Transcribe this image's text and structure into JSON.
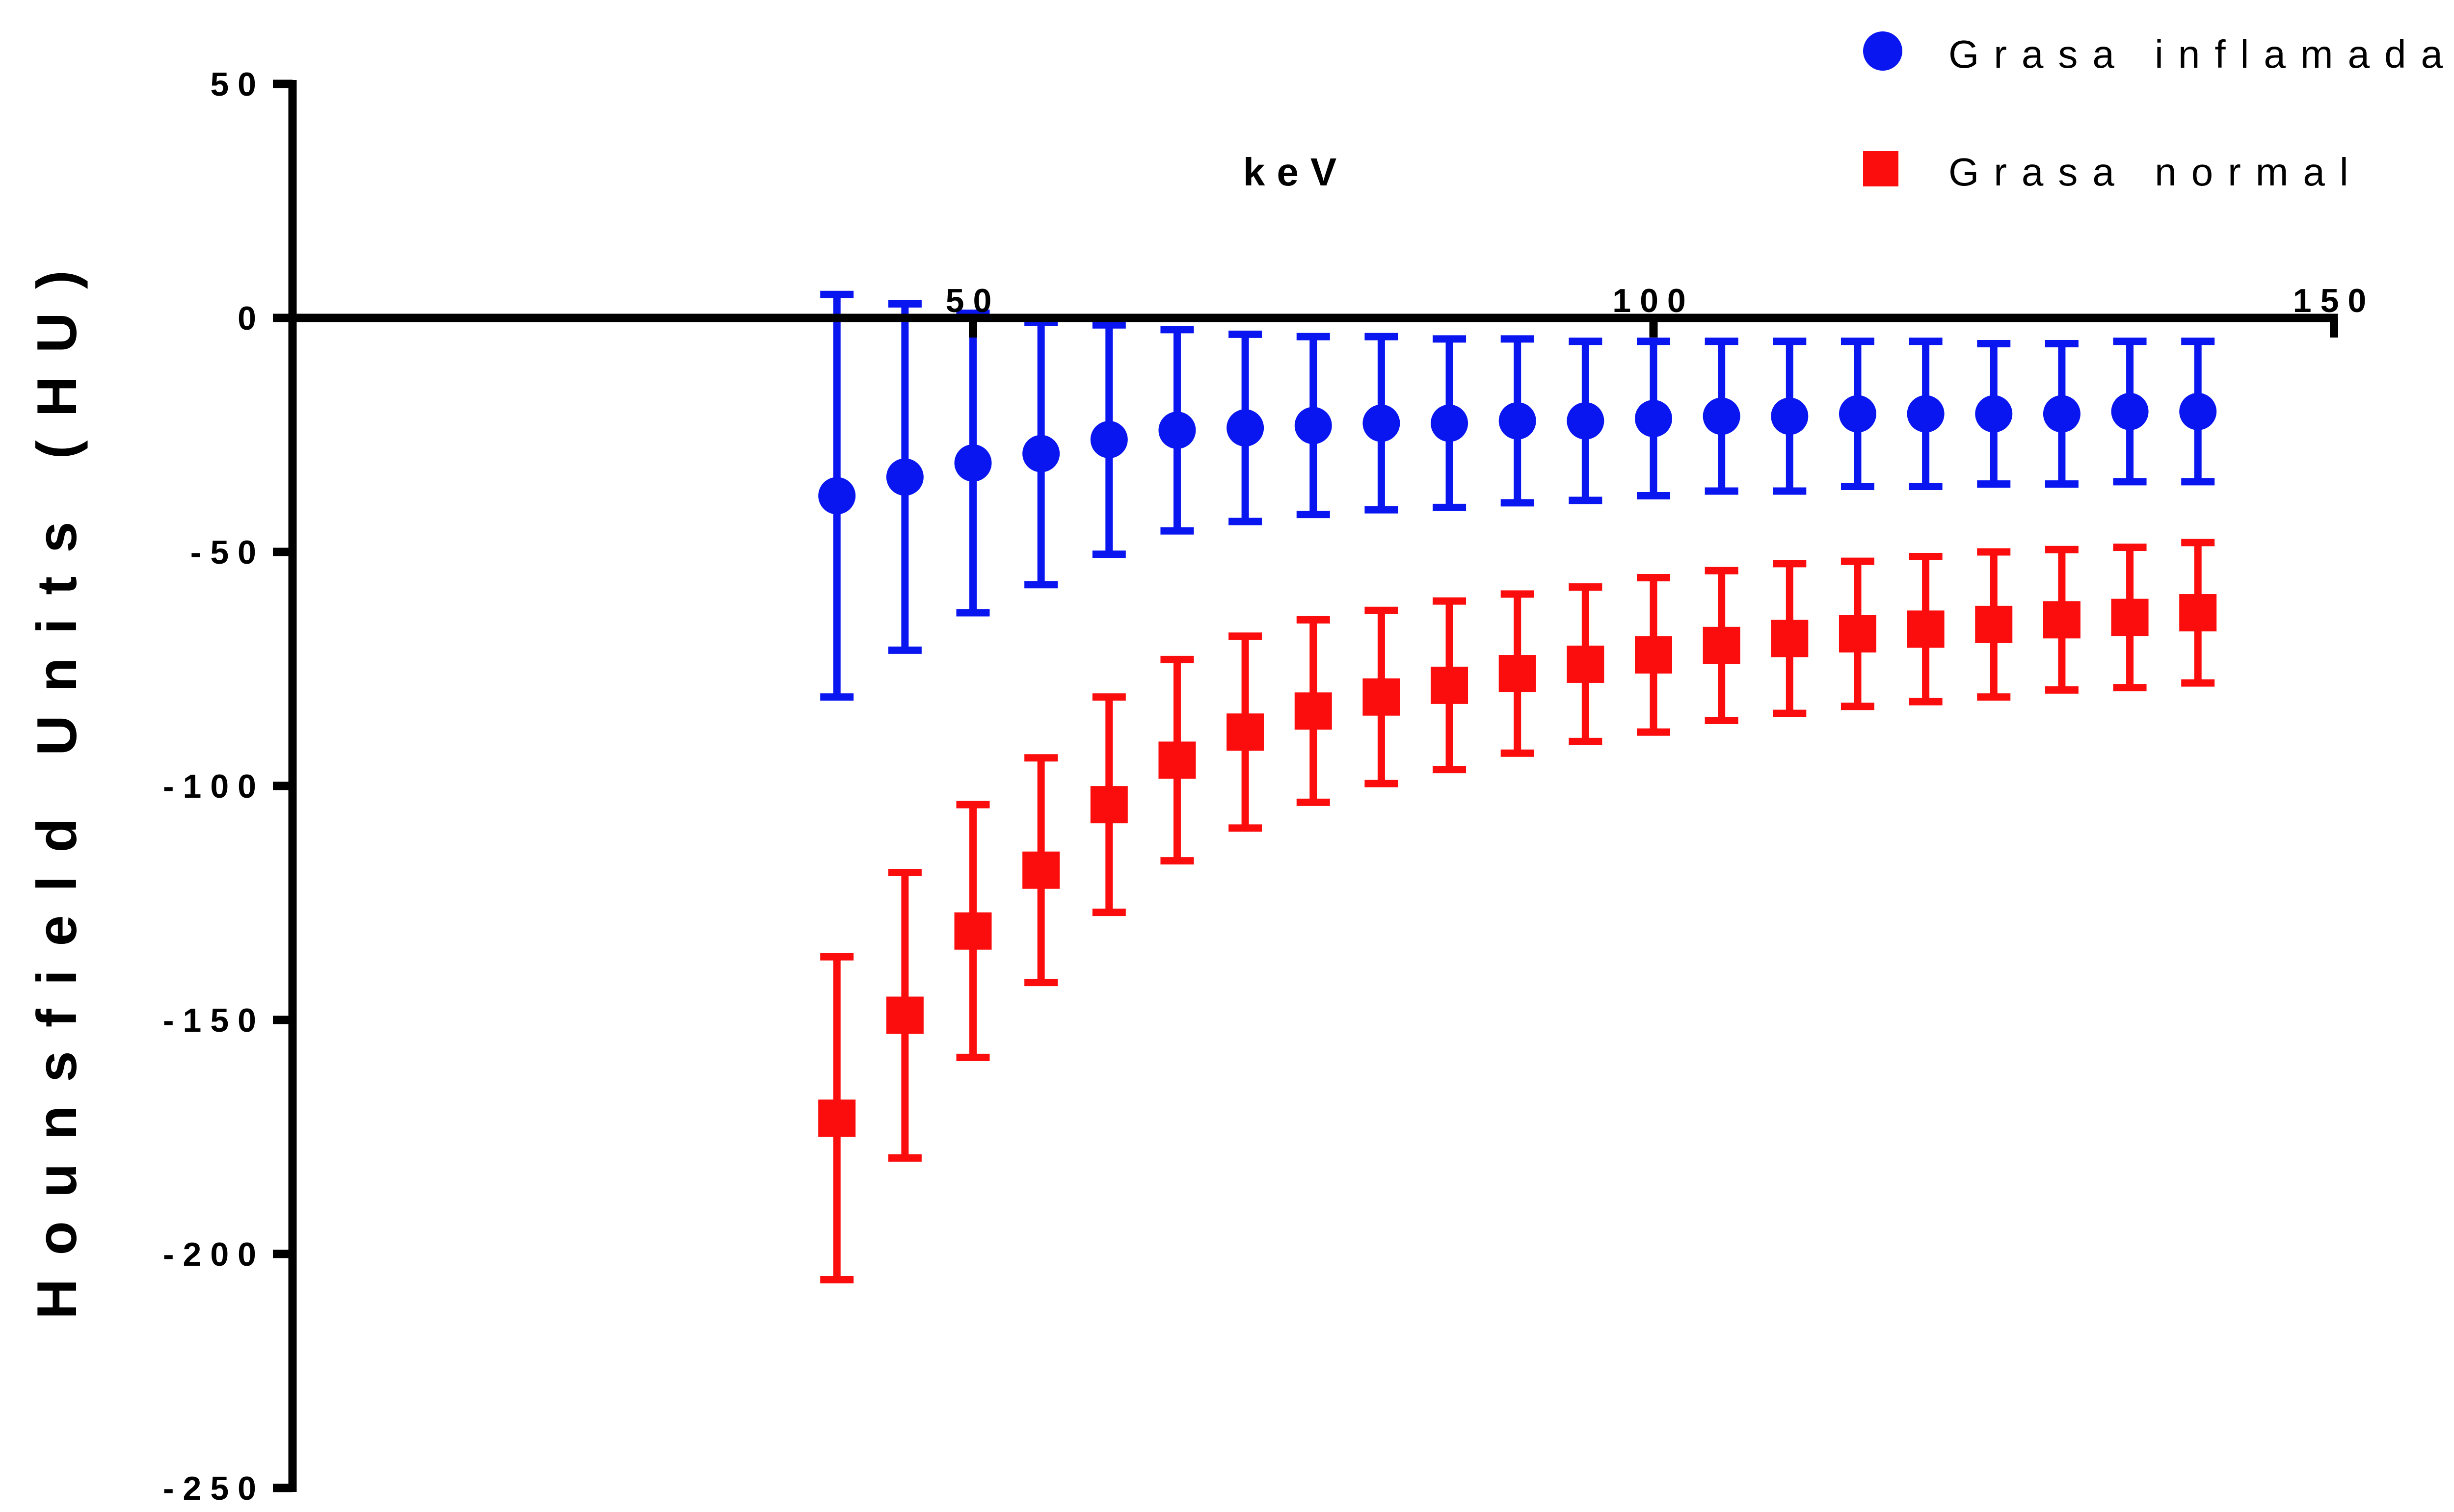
{
  "chart_data": {
    "type": "scatter",
    "xlabel": "keV",
    "ylabel": "Hounsfield Units (HU)",
    "xlim": [
      0,
      150
    ],
    "ylim": [
      -250,
      50
    ],
    "x_ticks": [
      50,
      100,
      150
    ],
    "y_ticks": [
      50,
      0,
      -50,
      -100,
      -150,
      -200,
      -250
    ],
    "x": [
      40,
      45,
      50,
      55,
      60,
      65,
      70,
      75,
      80,
      85,
      90,
      95,
      100,
      105,
      110,
      115,
      120,
      125,
      130,
      135,
      140
    ],
    "series": [
      {
        "name": "Grasa inflamada",
        "marker": "circle",
        "color": "#0a16f0",
        "y": [
          -38,
          -34,
          -31,
          -29,
          -26,
          -24,
          -23.5,
          -23,
          -22.5,
          -22.5,
          -22,
          -22,
          -21.5,
          -21,
          -21,
          -20.5,
          -20.5,
          -20.5,
          -20.5,
          -20,
          -20
        ],
        "err": [
          43,
          37,
          32,
          28,
          24.5,
          21.5,
          20,
          19,
          18.5,
          18,
          17.5,
          17,
          16.5,
          16,
          16,
          15.5,
          15.5,
          15,
          15,
          15,
          15
        ]
      },
      {
        "name": "Grasa normal",
        "marker": "square",
        "color": "#fc0d0d",
        "y": [
          -171,
          -149,
          -131,
          -118,
          -104,
          -94.5,
          -88.5,
          -84,
          -81,
          -78.5,
          -76,
          -74,
          -72,
          -70,
          -68.5,
          -67.5,
          -66.5,
          -65.5,
          -64.5,
          -64,
          -63
        ],
        "err": [
          34.5,
          30.5,
          27,
          24,
          23,
          21.5,
          20.5,
          19.5,
          18.5,
          18,
          17,
          16.5,
          16.5,
          16,
          16,
          15.5,
          15.5,
          15.5,
          15,
          15,
          15
        ]
      }
    ]
  }
}
